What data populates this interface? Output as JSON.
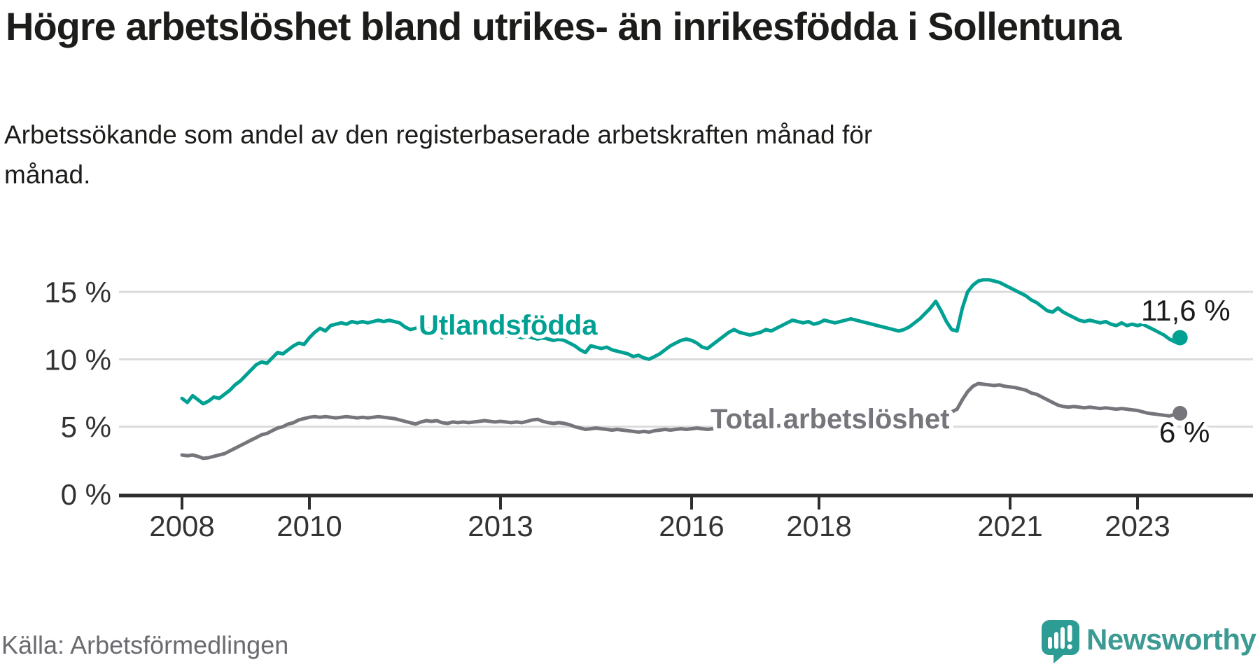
{
  "title": "Högre arbetslöshet bland utrikes- än inrikesfödda i Sollentuna",
  "subtitle_lines": [
    "Arbetssökande som andel av den registerbaserade arbetskraften månad för",
    "månad."
  ],
  "source": "Källa: Arbetsförmedlingen",
  "logo": {
    "text": "Newsworthy",
    "brand_color": "#3c9a93",
    "icon_color": "#2d9c94"
  },
  "colors": {
    "foreign_born_line": "#00a093",
    "total_line": "#76757b",
    "grid": "#dbdbdb",
    "axis": "#2e2e2e",
    "text_dark": "#1c1c1a",
    "source_gray": "#6b6a70"
  },
  "chart_data": {
    "type": "line",
    "title": "Högre arbetslöshet bland utrikes- än inrikesfödda i Sollentuna",
    "xlabel": "",
    "ylabel": "",
    "unit": "%",
    "frequency": "monthly",
    "x_start": {
      "year": 2008,
      "month": 1
    },
    "x_end": {
      "year": 2023,
      "month": 9
    },
    "x_ticks": [
      2008,
      2010,
      2013,
      2016,
      2018,
      2021,
      2023
    ],
    "y_ticks": [
      {
        "value": 0,
        "label": "0 %"
      },
      {
        "value": 5,
        "label": "5 %"
      },
      {
        "value": 10,
        "label": "10 %"
      },
      {
        "value": 15,
        "label": "15 %"
      }
    ],
    "ylim": [
      0,
      16.5
    ],
    "grid": "horizontal",
    "legend_position": "inline-labels",
    "series": [
      {
        "name": "Utlandsfödda",
        "color": "#00a093",
        "end_label": "11,6 %",
        "end_value": 11.6,
        "values": [
          7.1,
          6.8,
          7.3,
          7.0,
          6.7,
          6.9,
          7.2,
          7.1,
          7.4,
          7.7,
          8.1,
          8.4,
          8.8,
          9.2,
          9.6,
          9.8,
          9.7,
          10.1,
          10.5,
          10.4,
          10.7,
          11.0,
          11.2,
          11.1,
          11.6,
          12.0,
          12.3,
          12.1,
          12.5,
          12.6,
          12.7,
          12.6,
          12.8,
          12.7,
          12.8,
          12.7,
          12.8,
          12.9,
          12.8,
          12.9,
          12.8,
          12.7,
          12.4,
          12.2,
          12.3,
          12.4,
          12.2,
          12.3,
          12.2,
          11.6,
          11.9,
          12.1,
          12.0,
          12.1,
          12.0,
          11.9,
          12.0,
          11.9,
          11.8,
          11.9,
          11.8,
          11.7,
          11.8,
          11.7,
          11.6,
          11.7,
          11.6,
          11.5,
          11.6,
          11.5,
          11.4,
          11.5,
          11.4,
          11.2,
          11.0,
          10.7,
          10.5,
          11.0,
          10.9,
          10.8,
          10.9,
          10.7,
          10.6,
          10.5,
          10.4,
          10.2,
          10.3,
          10.1,
          10.0,
          10.2,
          10.4,
          10.7,
          11.0,
          11.2,
          11.4,
          11.5,
          11.4,
          11.2,
          10.9,
          10.8,
          11.1,
          11.4,
          11.7,
          12.0,
          12.2,
          12.0,
          11.9,
          11.8,
          11.9,
          12.0,
          12.2,
          12.1,
          12.3,
          12.5,
          12.7,
          12.9,
          12.8,
          12.7,
          12.8,
          12.6,
          12.7,
          12.9,
          12.8,
          12.7,
          12.8,
          12.9,
          13.0,
          12.9,
          12.8,
          12.7,
          12.6,
          12.5,
          12.4,
          12.3,
          12.2,
          12.1,
          12.2,
          12.4,
          12.7,
          13.0,
          13.4,
          13.8,
          14.3,
          13.6,
          12.8,
          12.2,
          12.1,
          13.8,
          15.0,
          15.5,
          15.8,
          15.9,
          15.9,
          15.8,
          15.7,
          15.5,
          15.3,
          15.1,
          14.9,
          14.7,
          14.4,
          14.2,
          13.9,
          13.6,
          13.5,
          13.8,
          13.5,
          13.3,
          13.1,
          12.9,
          12.8,
          12.9,
          12.8,
          12.7,
          12.8,
          12.6,
          12.5,
          12.7,
          12.5,
          12.6,
          12.5,
          12.6,
          12.4,
          12.2,
          12.0,
          11.8,
          11.5,
          11.3,
          11.6
        ]
      },
      {
        "name": "Total arbetslöshet",
        "color": "#76757b",
        "end_label": "6 %",
        "end_value": 6.0,
        "values": [
          2.9,
          2.85,
          2.9,
          2.8,
          2.65,
          2.7,
          2.8,
          2.9,
          3.0,
          3.2,
          3.4,
          3.6,
          3.8,
          4.0,
          4.2,
          4.4,
          4.5,
          4.7,
          4.9,
          5.0,
          5.2,
          5.3,
          5.5,
          5.6,
          5.7,
          5.75,
          5.7,
          5.75,
          5.7,
          5.65,
          5.7,
          5.75,
          5.7,
          5.65,
          5.7,
          5.65,
          5.7,
          5.75,
          5.7,
          5.65,
          5.6,
          5.5,
          5.4,
          5.3,
          5.2,
          5.35,
          5.45,
          5.4,
          5.45,
          5.3,
          5.25,
          5.35,
          5.3,
          5.35,
          5.3,
          5.35,
          5.4,
          5.45,
          5.4,
          5.35,
          5.4,
          5.35,
          5.3,
          5.35,
          5.3,
          5.4,
          5.5,
          5.55,
          5.4,
          5.3,
          5.25,
          5.3,
          5.25,
          5.15,
          5.0,
          4.9,
          4.8,
          4.85,
          4.9,
          4.85,
          4.8,
          4.75,
          4.8,
          4.75,
          4.7,
          4.65,
          4.6,
          4.65,
          4.6,
          4.7,
          4.75,
          4.8,
          4.75,
          4.8,
          4.85,
          4.8,
          4.85,
          4.9,
          4.85,
          4.8,
          4.85,
          4.9,
          4.95,
          5.0,
          4.95,
          4.9,
          4.95,
          4.9,
          4.95,
          5.0,
          5.05,
          5.0,
          5.05,
          5.1,
          5.15,
          5.2,
          5.15,
          5.1,
          5.15,
          5.1,
          5.1,
          5.15,
          5.1,
          5.05,
          5.1,
          5.05,
          5.1,
          5.05,
          5.0,
          4.95,
          5.0,
          4.95,
          5.0,
          5.05,
          5.1,
          5.05,
          5.1,
          5.2,
          5.3,
          5.4,
          5.5,
          5.6,
          5.8,
          5.9,
          6.0,
          6.1,
          6.3,
          7.0,
          7.6,
          8.0,
          8.2,
          8.15,
          8.1,
          8.05,
          8.1,
          8.0,
          7.95,
          7.9,
          7.8,
          7.7,
          7.5,
          7.4,
          7.2,
          7.0,
          6.8,
          6.6,
          6.5,
          6.45,
          6.5,
          6.45,
          6.4,
          6.45,
          6.4,
          6.35,
          6.4,
          6.35,
          6.3,
          6.35,
          6.3,
          6.25,
          6.2,
          6.1,
          6.0,
          5.95,
          5.9,
          5.85,
          5.8,
          5.9,
          6.0
        ]
      }
    ]
  }
}
